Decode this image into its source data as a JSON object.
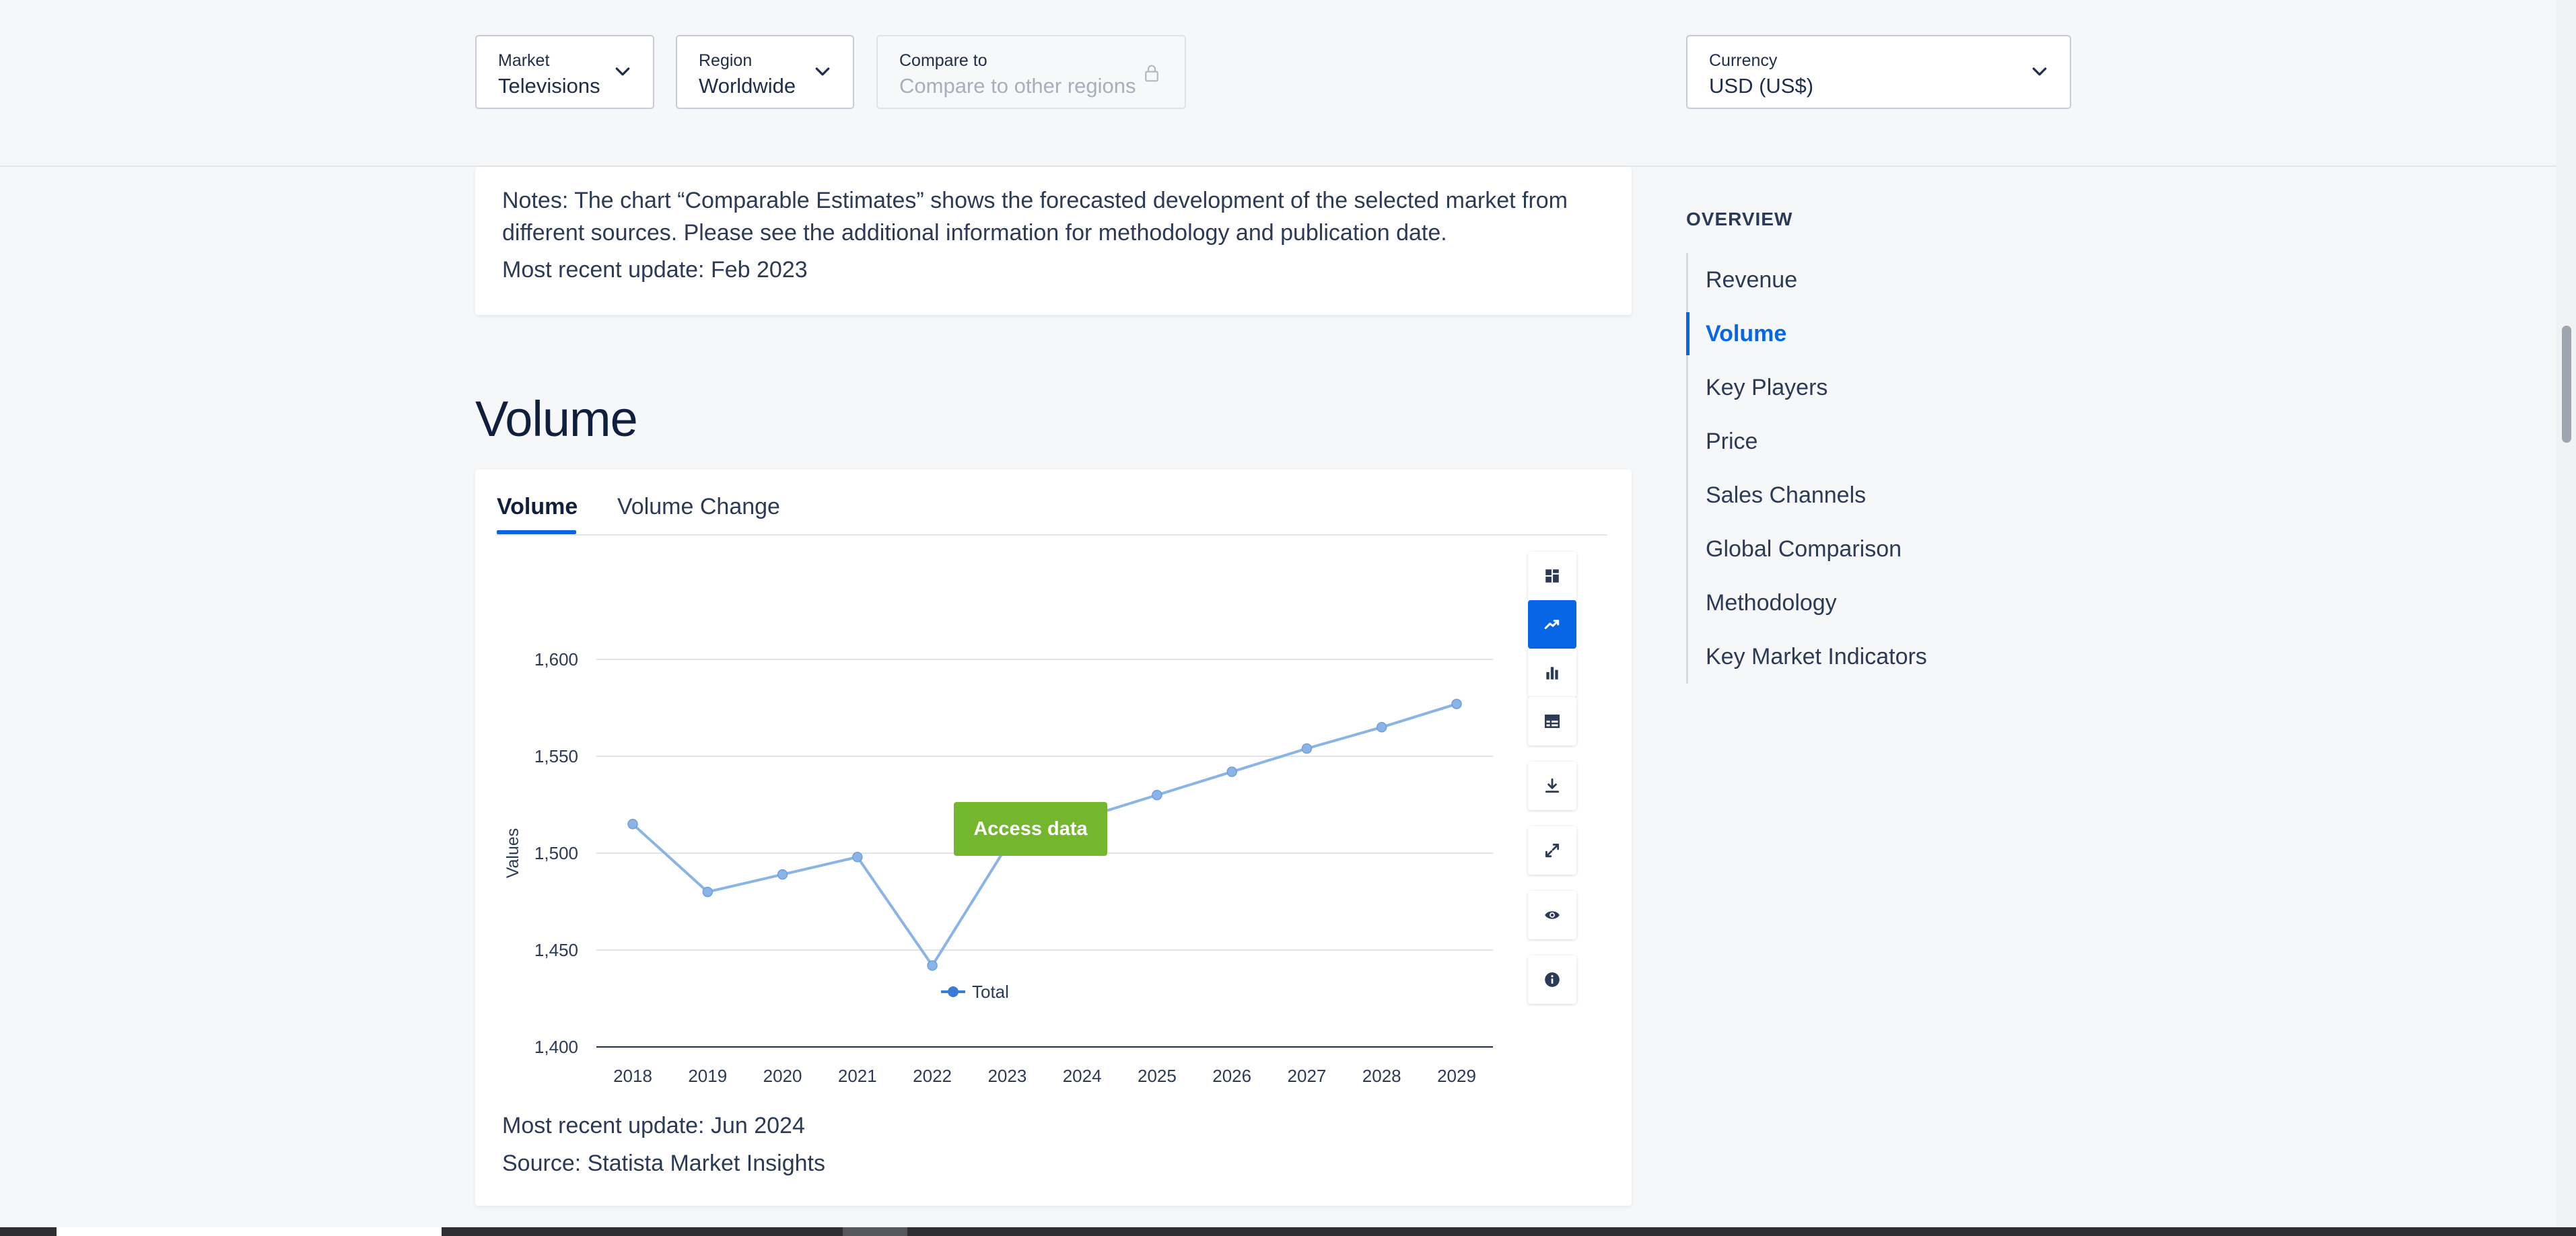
{
  "filters": {
    "market": {
      "label": "Market",
      "value": "Televisions"
    },
    "region": {
      "label": "Region",
      "value": "Worldwide"
    },
    "compare": {
      "label": "Compare to",
      "placeholder": "Compare to other regions"
    },
    "currency": {
      "label": "Currency",
      "value": "USD (US$)"
    }
  },
  "notes_card": {
    "text": "Notes: The chart “Comparable Estimates” shows the forecasted development of the selected market from different sources. Please see the additional information for methodology and publication date.",
    "update": "Most recent update: Feb 2023"
  },
  "section": {
    "title": "Volume",
    "tabs": [
      {
        "label": "Volume",
        "active": true
      },
      {
        "label": "Volume Change",
        "active": false
      }
    ],
    "access_button": "Access data",
    "footer_update": "Most recent update: Jun 2024",
    "footer_source": "Source: Statista Market Insights",
    "tools": [
      "grid-icon",
      "line-chart-icon",
      "bar-chart-icon",
      "table-icon",
      "download-icon",
      "expand-icon",
      "eye-icon",
      "info-icon"
    ],
    "active_tool": "line-chart-icon"
  },
  "chart_data": {
    "type": "line",
    "title": "",
    "xlabel": "",
    "ylabel": "Values",
    "x": [
      "2018",
      "2019",
      "2020",
      "2021",
      "2022",
      "2023",
      "2024",
      "2025",
      "2026",
      "2027",
      "2028",
      "2029"
    ],
    "series": [
      {
        "name": "Total",
        "values": [
          1515,
          1480,
          1489,
          1498,
          1442,
          1504,
          1518,
          1530,
          1542,
          1554,
          1565,
          1577
        ]
      }
    ],
    "y_ticks": [
      "1,400",
      "1,450",
      "1,500",
      "1,550",
      "1,600"
    ],
    "ylim": [
      1400,
      1600
    ],
    "grid": true,
    "legend": "bottom-center",
    "line_color": "#8ab3e6"
  },
  "overview": {
    "title": "OVERVIEW",
    "items": [
      {
        "label": "Revenue",
        "active": false
      },
      {
        "label": "Volume",
        "active": true
      },
      {
        "label": "Key Players",
        "active": false
      },
      {
        "label": "Price",
        "active": false
      },
      {
        "label": "Sales Channels",
        "active": false
      },
      {
        "label": "Global Comparison",
        "active": false
      },
      {
        "label": "Methodology",
        "active": false
      },
      {
        "label": "Key Market Indicators",
        "active": false
      }
    ]
  }
}
